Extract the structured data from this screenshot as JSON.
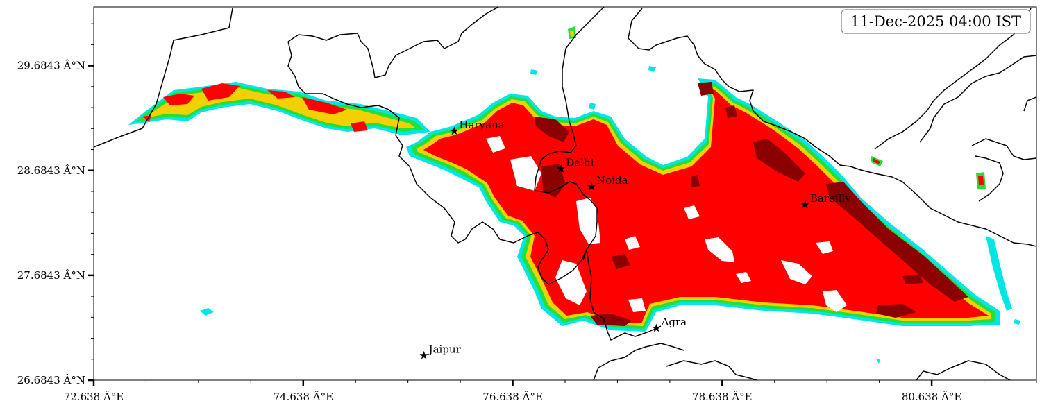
{
  "timestamp": "11-Dec-2025 04:00 IST",
  "axes": {
    "x_ticks": [
      {
        "value": 72.638,
        "label": "72.638 Â°E"
      },
      {
        "value": 74.638,
        "label": "74.638 Â°E"
      },
      {
        "value": 76.638,
        "label": "76.638 Â°E"
      },
      {
        "value": 78.638,
        "label": "78.638 Â°E"
      },
      {
        "value": 80.638,
        "label": "80.638 Â°E"
      }
    ],
    "y_ticks": [
      {
        "value": 26.6843,
        "label": "26.6843 Â°N"
      },
      {
        "value": 27.6843,
        "label": "27.6843 Â°N"
      },
      {
        "value": 28.6843,
        "label": "28.6843 Â°N"
      },
      {
        "value": 29.6843,
        "label": "29.6843 Â°N"
      }
    ],
    "xlim": [
      72.638,
      81.638
    ],
    "ylim": [
      26.6843,
      30.2443
    ]
  },
  "cities": [
    {
      "name": "Haryana",
      "lon": 76.08,
      "lat": 29.06
    },
    {
      "name": "Delhi",
      "lon": 77.1,
      "lat": 28.7
    },
    {
      "name": "Noida",
      "lon": 77.39,
      "lat": 28.53
    },
    {
      "name": "Bareilly",
      "lon": 79.43,
      "lat": 28.36
    },
    {
      "name": "Agra",
      "lon": 78.01,
      "lat": 27.18
    },
    {
      "name": "Jaipur",
      "lon": 75.79,
      "lat": 26.92
    }
  ],
  "colors": {
    "edge": "#00e5e5",
    "outer": "#21e03a",
    "moderate": "#f5d000",
    "high": "#ff0000",
    "severe": "#8b0000",
    "boundary": "#000000"
  }
}
